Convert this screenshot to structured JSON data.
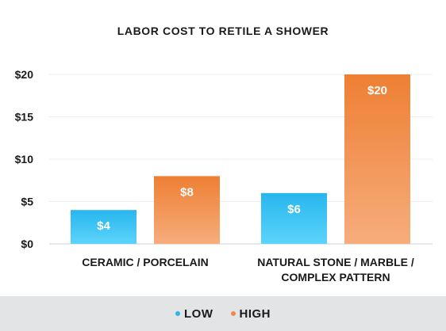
{
  "chart_data": {
    "type": "bar",
    "title": "LABOR COST TO RETILE A SHOWER",
    "categories": [
      [
        "CERAMIC / PORCELAIN"
      ],
      [
        "NATURAL STONE / MARBLE /",
        "COMPLEX PATTERN"
      ]
    ],
    "series": [
      {
        "name": "LOW",
        "values": [
          4,
          6
        ],
        "labels": [
          "$4",
          "$6"
        ],
        "color_top": "#27b6ee",
        "color_bottom": "#5cd4fb"
      },
      {
        "name": "HIGH",
        "values": [
          8,
          20
        ],
        "labels": [
          "$8",
          "$20"
        ],
        "color_top": "#ee7f33",
        "color_bottom": "#f6ad7c"
      }
    ],
    "y_ticks": [
      0,
      5,
      10,
      15,
      20
    ],
    "y_tick_labels": [
      "$0",
      "$5",
      "$10",
      "$15",
      "$20"
    ],
    "ylim": [
      0,
      20
    ],
    "grid": true,
    "legend_position": "bottom"
  },
  "legend": {
    "low_label": "LOW",
    "high_label": "HIGH",
    "low_color": "#29b6f0",
    "high_color": "#ef8a45"
  }
}
